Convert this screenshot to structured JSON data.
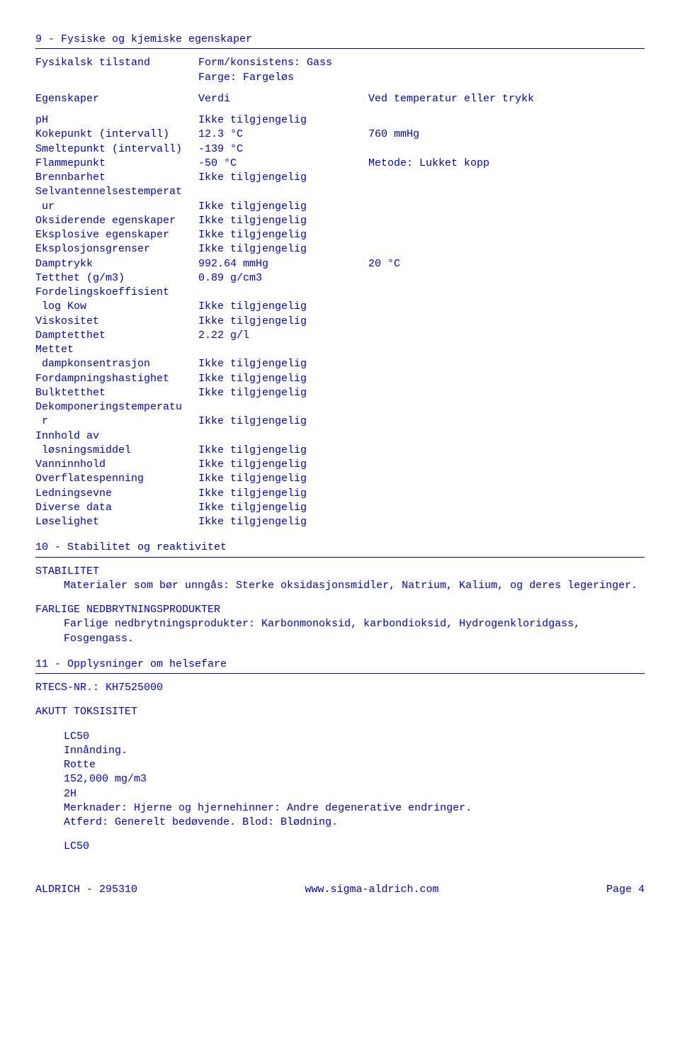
{
  "s9": {
    "title": "9 - Fysiske og kjemiske egenskaper",
    "state_label": "Fysikalsk tilstand",
    "state_form": "Form/konsistens: Gass",
    "state_color": "Farge: Fargeløs",
    "hdr_prop": "Egenskaper",
    "hdr_val": "Verdi",
    "hdr_cond": "Ved temperatur eller trykk",
    "rows": [
      {
        "p": "pH",
        "v": "Ikke tilgjengelig",
        "c": ""
      },
      {
        "p": "Kokepunkt (intervall)",
        "v": "12.3 °C",
        "c": "760 mmHg"
      },
      {
        "p": "Smeltepunkt (intervall)",
        "v": "-139 °C",
        "c": ""
      },
      {
        "p": "Flammepunkt",
        "v": "-50 °C",
        "c": "Metode: Lukket kopp"
      },
      {
        "p": "Brennbarhet",
        "v": "Ikke tilgjengelig",
        "c": ""
      },
      {
        "p": "Selvantennelsestemperat",
        "v": "",
        "c": ""
      },
      {
        "p": " ur",
        "v": "Ikke tilgjengelig",
        "c": ""
      },
      {
        "p": "Oksiderende egenskaper",
        "v": "Ikke tilgjengelig",
        "c": ""
      },
      {
        "p": "Eksplosive egenskaper",
        "v": "Ikke tilgjengelig",
        "c": ""
      },
      {
        "p": "Eksplosjonsgrenser",
        "v": "Ikke tilgjengelig",
        "c": ""
      },
      {
        "p": "Damptrykk",
        "v": "992.64 mmHg",
        "c": "20 °C"
      },
      {
        "p": "Tetthet (g/m3)",
        "v": "0.89 g/cm3",
        "c": ""
      },
      {
        "p": "Fordelingskoeffisient",
        "v": "",
        "c": ""
      },
      {
        "p": " log Kow",
        "v": "Ikke tilgjengelig",
        "c": ""
      },
      {
        "p": "Viskositet",
        "v": "Ikke tilgjengelig",
        "c": ""
      },
      {
        "p": "Damptetthet",
        "v": "2.22 g/l",
        "c": ""
      },
      {
        "p": "Mettet",
        "v": "",
        "c": ""
      },
      {
        "p": " dampkonsentrasjon",
        "v": "Ikke tilgjengelig",
        "c": ""
      },
      {
        "p": "Fordampningshastighet",
        "v": "Ikke tilgjengelig",
        "c": ""
      },
      {
        "p": "Bulktetthet",
        "v": "Ikke tilgjengelig",
        "c": ""
      },
      {
        "p": "Dekomponeringstemperatu",
        "v": "",
        "c": ""
      },
      {
        "p": " r",
        "v": "Ikke tilgjengelig",
        "c": ""
      },
      {
        "p": "Innhold av",
        "v": "",
        "c": ""
      },
      {
        "p": " løsningsmiddel",
        "v": "Ikke tilgjengelig",
        "c": ""
      },
      {
        "p": "Vanninnhold",
        "v": "Ikke tilgjengelig",
        "c": ""
      },
      {
        "p": "Overflatespenning",
        "v": "Ikke tilgjengelig",
        "c": ""
      },
      {
        "p": "Ledningsevne",
        "v": "Ikke tilgjengelig",
        "c": ""
      },
      {
        "p": "Diverse data",
        "v": "Ikke tilgjengelig",
        "c": ""
      },
      {
        "p": "Løselighet",
        "v": "Ikke tilgjengelig",
        "c": ""
      }
    ]
  },
  "s10": {
    "title": "10 - Stabilitet og reaktivitet",
    "stability_h": "STABILITET",
    "stability_t": "Materialer som bør unngås: Sterke oksidasjonsmidler, Natrium, Kalium, og deres legeringer.",
    "decomp_h": "FARLIGE NEDBRYTNINGSPRODUKTER",
    "decomp_t": "Farlige nedbrytningsprodukter: Karbonmonoksid, karbondioksid, Hydrogenkloridgass, Fosgengass."
  },
  "s11": {
    "title": "11 - Opplysninger om helsefare",
    "rtecs": "RTECS-NR.: KH7525000",
    "acute_h": "AKUTT TOKSISITET",
    "lc50_1": "LC50",
    "route": "Innånding.",
    "species": "Rotte",
    "dose": "152,000 mg/m3",
    "duration": "2H",
    "remarks1": "Merknader: Hjerne og hjernehinner: Andre degenerative endringer.",
    "remarks2": "Atferd: Generelt bedøvende. Blod: Blødning.",
    "lc50_2": "LC50"
  },
  "footer": {
    "left": "ALDRICH - 295310",
    "center": "www.sigma-aldrich.com",
    "right": "Page    4"
  }
}
